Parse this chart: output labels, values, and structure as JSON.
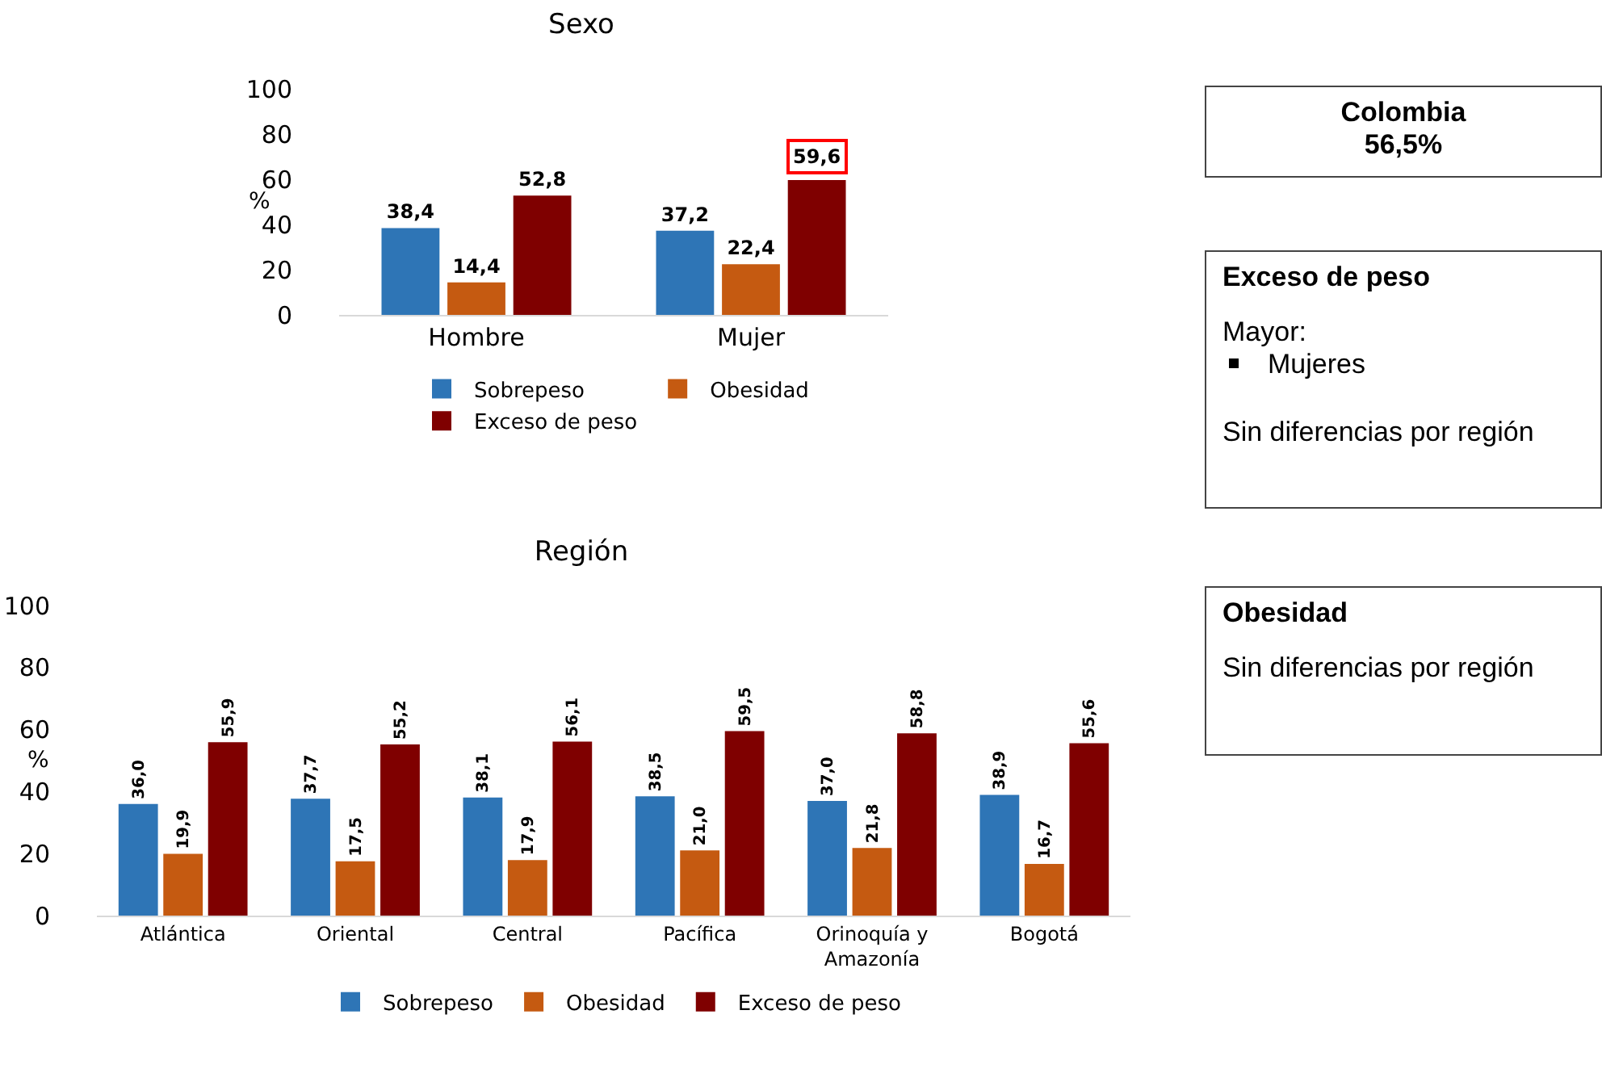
{
  "chart_data": [
    {
      "type": "bar",
      "title": "Sexo",
      "ylabel": "%",
      "categories": [
        "Hombre",
        "Mujer"
      ],
      "ylim": [
        0,
        100
      ],
      "yticks": [
        0,
        20,
        40,
        60,
        80,
        100
      ],
      "grid": false,
      "legend": "bottom",
      "series": [
        {
          "name": "Sobrepeso",
          "color": "#2e75b6",
          "values": [
            38.4,
            37.2
          ],
          "value_labels": [
            "38,4",
            "37,2"
          ]
        },
        {
          "name": "Obesidad",
          "color": "#c55a11",
          "values": [
            14.4,
            22.4
          ],
          "value_labels": [
            "14,4",
            "22,4"
          ]
        },
        {
          "name": "Exceso de peso",
          "color": "#7f0000",
          "values": [
            52.8,
            59.6
          ],
          "value_labels": [
            "52,8",
            null
          ]
        }
      ],
      "annotations": [
        "59,6"
      ]
    },
    {
      "type": "bar",
      "title": "Región",
      "ylabel": "%",
      "categories": [
        "Atlántica",
        "Oriental",
        "Central",
        "Pacífica",
        "Orinoquía y Amazonía",
        "Bogotá"
      ],
      "ylim": [
        0,
        100
      ],
      "yticks": [
        0,
        20,
        40,
        60,
        80,
        100
      ],
      "grid": false,
      "legend": "bottom",
      "series": [
        {
          "name": "Sobrepeso",
          "color": "#2e75b6",
          "values": [
            36.0,
            37.7,
            38.1,
            38.5,
            37.0,
            38.9
          ],
          "value_labels": [
            "36,0",
            "37,7",
            "38,1",
            "38,5",
            "37,0",
            "38,9"
          ]
        },
        {
          "name": "Obesidad",
          "color": "#c55a11",
          "values": [
            19.9,
            17.5,
            17.9,
            21.0,
            21.8,
            16.7
          ],
          "value_labels": [
            "19,9",
            "17,5",
            "17,9",
            "21,0",
            "21,8",
            "16,7"
          ]
        },
        {
          "name": "Exceso de peso",
          "color": "#7f0000",
          "values": [
            55.9,
            55.2,
            56.1,
            59.5,
            58.8,
            55.6
          ],
          "value_labels": [
            "55,9",
            "55,2",
            "56,1",
            "59,5",
            "58,8",
            "55,6"
          ]
        }
      ]
    },
    {
      "type": "other",
      "title": "Colombia",
      "annotations": [
        "56,5%"
      ]
    },
    {
      "type": "other",
      "title": "Exceso de peso",
      "annotations": [
        "Mayor:",
        "Mujeres",
        "Sin diferencias por región"
      ]
    },
    {
      "type": "other",
      "title": "Obesidad",
      "annotations": [
        "Sin diferencias por región"
      ]
    }
  ]
}
